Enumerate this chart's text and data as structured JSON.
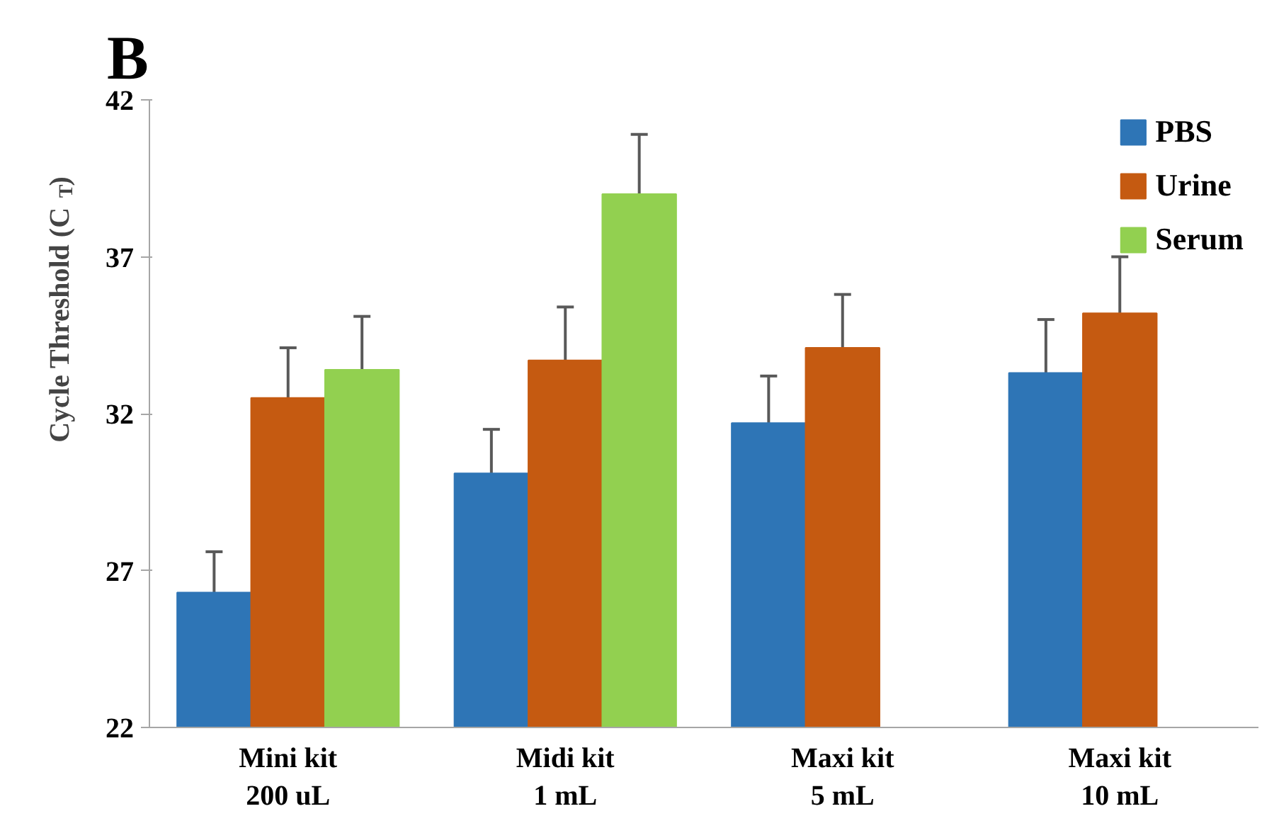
{
  "chart_data": {
    "type": "bar",
    "title": "B",
    "ylabel": "Cycle Threshold (C$_{T}$)",
    "categories": [
      "Mini kit\n200 uL",
      "Midi kit\n1 mL",
      "Maxi kit\n5 mL",
      "Maxi kit\n10 mL"
    ],
    "series": [
      {
        "name": "PBS",
        "color": "#2e75b6",
        "values": [
          26.3,
          30.1,
          31.7,
          33.3
        ],
        "errors": [
          1.3,
          1.4,
          1.5,
          1.7
        ]
      },
      {
        "name": "Urine",
        "color": "#c55a11",
        "values": [
          32.5,
          33.7,
          34.1,
          35.2
        ],
        "errors": [
          1.6,
          1.7,
          1.7,
          1.8
        ]
      },
      {
        "name": "Serum",
        "color": "#92d050",
        "values": [
          33.4,
          39.0,
          null,
          null
        ],
        "errors": [
          1.7,
          1.9,
          null,
          null
        ]
      }
    ],
    "ylim": [
      22,
      42
    ],
    "yticks": [
      22,
      27,
      32,
      37,
      42
    ],
    "grid": false,
    "legend": "top right"
  }
}
